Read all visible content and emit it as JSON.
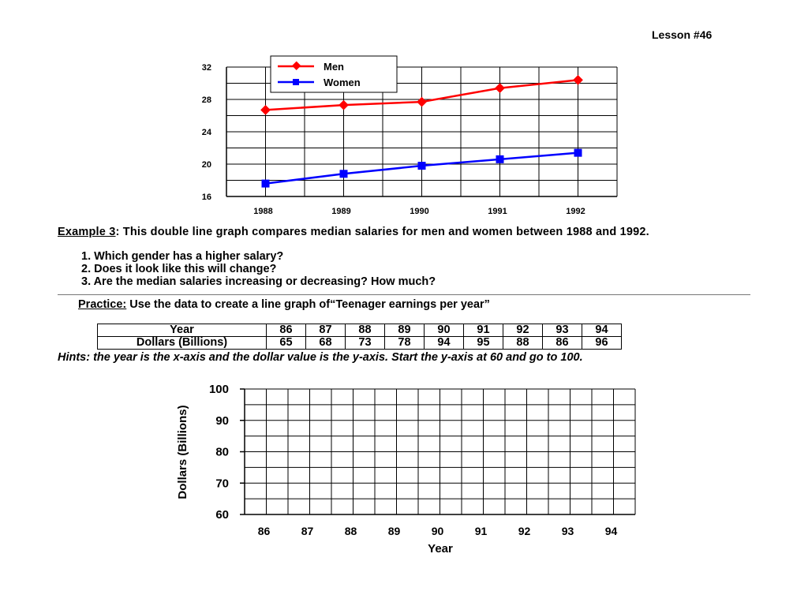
{
  "lesson": "Lesson #46",
  "example": {
    "label": "Example 3",
    "text": ": This double line graph compares median salaries for men and women between 1988 and 1992.",
    "questions": [
      "1.  Which gender has a higher salary?",
      "2.  Does it look like this will change?",
      "3.  Are the median salaries increasing or decreasing? How much?"
    ]
  },
  "practice": {
    "label": "Practice:",
    "text": " Use the data to create a line graph of“Teenager earnings per year”"
  },
  "table": {
    "row1_label": "Year",
    "row2_label": "Dollars (Billions)",
    "years": [
      "86",
      "87",
      "88",
      "89",
      "90",
      "91",
      "92",
      "93",
      "94"
    ],
    "dollars": [
      "65",
      "68",
      "73",
      "78",
      "94",
      "95",
      "88",
      "86",
      "96"
    ]
  },
  "hint": "Hints: the year is the x-axis and the dollar value is the y-axis.  Start the y-axis at 60 and go to 100.",
  "chart_data": [
    {
      "type": "line",
      "title": "",
      "xlabel": "",
      "ylabel": "",
      "categories": [
        "1988",
        "1989",
        "1990",
        "1991",
        "1992"
      ],
      "y_ticks": [
        "16",
        "20",
        "24",
        "28",
        "32"
      ],
      "ylim": [
        16,
        32
      ],
      "grid": true,
      "legend": "top-left",
      "series": [
        {
          "name": "Men",
          "color": "#ff0000",
          "marker": "diamond",
          "values": [
            26.7,
            27.3,
            27.7,
            29.4,
            30.4
          ]
        },
        {
          "name": "Women",
          "color": "#0000ff",
          "marker": "square",
          "values": [
            17.6,
            18.8,
            19.8,
            20.6,
            21.4
          ]
        }
      ]
    },
    {
      "type": "line",
      "title": "",
      "xlabel": "Year",
      "ylabel": "Dollars (Billions)",
      "categories": [
        "86",
        "87",
        "88",
        "89",
        "90",
        "91",
        "92",
        "93",
        "94"
      ],
      "y_ticks": [
        "60",
        "70",
        "80",
        "90",
        "100"
      ],
      "ylim": [
        60,
        100
      ],
      "grid": true,
      "series": []
    }
  ]
}
